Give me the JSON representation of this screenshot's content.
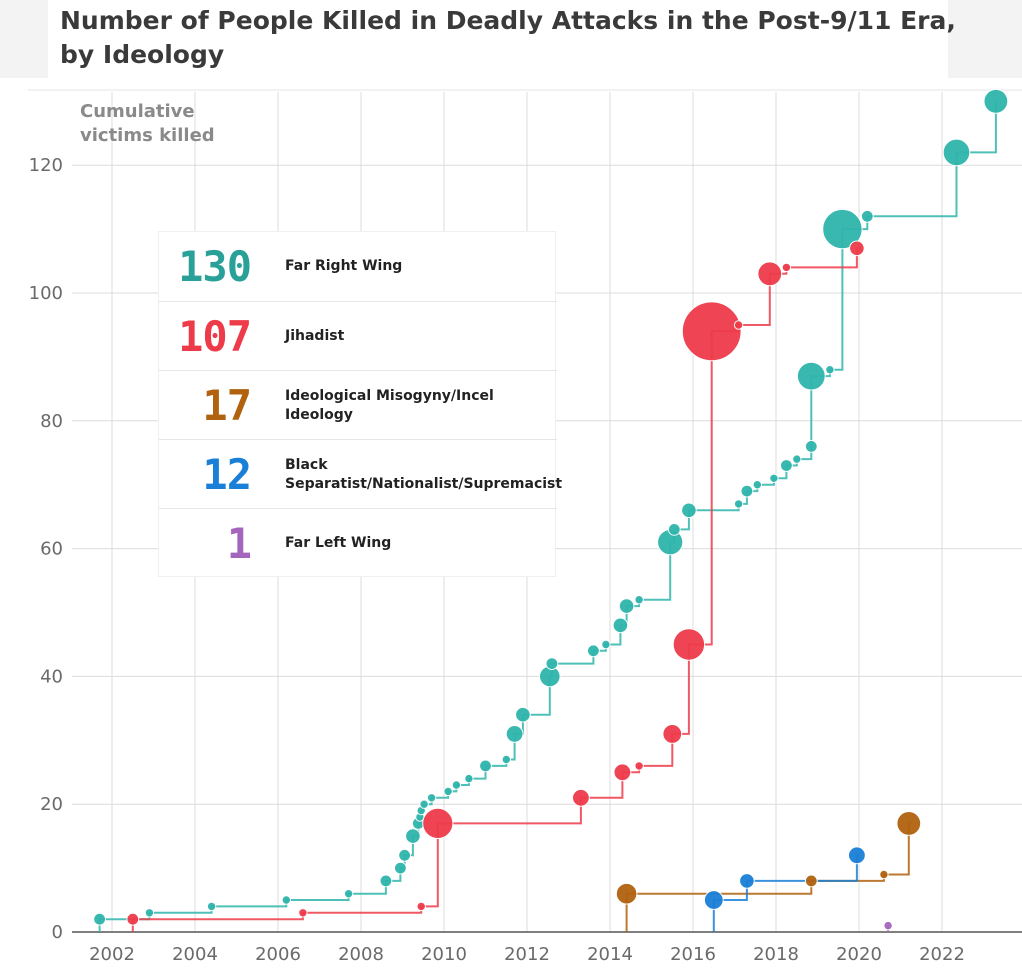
{
  "title": "Number of People Killed in Deadly Attacks in the Post-9/11 Era, by Ideology",
  "chart_data": {
    "type": "line",
    "step": true,
    "ylabel": "Cumulative victims killed",
    "xlim": [
      2000.7,
      2023.3
    ],
    "ylim": [
      0,
      130
    ],
    "x_ticks": [
      "2002",
      "2004",
      "2006",
      "2008",
      "2010",
      "2012",
      "2014",
      "2016",
      "2018",
      "2020",
      "2022"
    ],
    "y_ticks": [
      "0",
      "20",
      "40",
      "60",
      "80",
      "100",
      "120"
    ],
    "grid": true,
    "legend_position": "upper-left",
    "series": [
      {
        "name": "Far Right Wing",
        "total": "130",
        "color": "#2fb5ac",
        "points": [
          {
            "x": 2001.7,
            "y": 2,
            "killed": 2
          },
          {
            "x": 2002.9,
            "y": 3,
            "killed": 1
          },
          {
            "x": 2004.4,
            "y": 4,
            "killed": 1
          },
          {
            "x": 2006.2,
            "y": 5,
            "killed": 1
          },
          {
            "x": 2007.7,
            "y": 6,
            "killed": 1
          },
          {
            "x": 2008.6,
            "y": 8,
            "killed": 2
          },
          {
            "x": 2008.95,
            "y": 10,
            "killed": 2
          },
          {
            "x": 2009.05,
            "y": 12,
            "killed": 2
          },
          {
            "x": 2009.25,
            "y": 15,
            "killed": 3
          },
          {
            "x": 2009.38,
            "y": 17,
            "killed": 2
          },
          {
            "x": 2009.42,
            "y": 18,
            "killed": 1
          },
          {
            "x": 2009.45,
            "y": 19,
            "killed": 1
          },
          {
            "x": 2009.52,
            "y": 20,
            "killed": 1
          },
          {
            "x": 2009.7,
            "y": 21,
            "killed": 1
          },
          {
            "x": 2010.1,
            "y": 22,
            "killed": 1
          },
          {
            "x": 2010.3,
            "y": 23,
            "killed": 1
          },
          {
            "x": 2010.6,
            "y": 24,
            "killed": 1
          },
          {
            "x": 2011.0,
            "y": 26,
            "killed": 2
          },
          {
            "x": 2011.5,
            "y": 27,
            "killed": 1
          },
          {
            "x": 2011.7,
            "y": 31,
            "killed": 4
          },
          {
            "x": 2011.9,
            "y": 34,
            "killed": 3
          },
          {
            "x": 2012.55,
            "y": 40,
            "killed": 6
          },
          {
            "x": 2012.6,
            "y": 42,
            "killed": 2
          },
          {
            "x": 2013.6,
            "y": 44,
            "killed": 2
          },
          {
            "x": 2013.9,
            "y": 45,
            "killed": 1
          },
          {
            "x": 2014.25,
            "y": 48,
            "killed": 3
          },
          {
            "x": 2014.4,
            "y": 51,
            "killed": 3
          },
          {
            "x": 2014.7,
            "y": 52,
            "killed": 1
          },
          {
            "x": 2015.45,
            "y": 61,
            "killed": 9
          },
          {
            "x": 2015.55,
            "y": 63,
            "killed": 2
          },
          {
            "x": 2015.9,
            "y": 66,
            "killed": 3
          },
          {
            "x": 2017.1,
            "y": 67,
            "killed": 1
          },
          {
            "x": 2017.3,
            "y": 69,
            "killed": 2
          },
          {
            "x": 2017.55,
            "y": 70,
            "killed": 1
          },
          {
            "x": 2017.95,
            "y": 71,
            "killed": 1
          },
          {
            "x": 2018.25,
            "y": 73,
            "killed": 2
          },
          {
            "x": 2018.5,
            "y": 74,
            "killed": 1
          },
          {
            "x": 2018.85,
            "y": 76,
            "killed": 2
          },
          {
            "x": 2018.85,
            "y": 87,
            "killed": 11
          },
          {
            "x": 2019.3,
            "y": 88,
            "killed": 1
          },
          {
            "x": 2019.6,
            "y": 110,
            "killed": 22
          },
          {
            "x": 2020.2,
            "y": 112,
            "killed": 2
          },
          {
            "x": 2022.35,
            "y": 122,
            "killed": 10
          },
          {
            "x": 2023.3,
            "y": 130,
            "killed": 8
          }
        ]
      },
      {
        "name": "Jihadist",
        "total": "107",
        "color": "#ee3b4a",
        "points": [
          {
            "x": 2002.5,
            "y": 2,
            "killed": 2
          },
          {
            "x": 2006.6,
            "y": 3,
            "killed": 1
          },
          {
            "x": 2009.45,
            "y": 4,
            "killed": 1
          },
          {
            "x": 2009.85,
            "y": 17,
            "killed": 13
          },
          {
            "x": 2013.3,
            "y": 21,
            "killed": 4
          },
          {
            "x": 2014.3,
            "y": 25,
            "killed": 4
          },
          {
            "x": 2014.7,
            "y": 26,
            "killed": 1
          },
          {
            "x": 2015.5,
            "y": 31,
            "killed": 5
          },
          {
            "x": 2015.9,
            "y": 45,
            "killed": 14
          },
          {
            "x": 2016.45,
            "y": 94,
            "killed": 49
          },
          {
            "x": 2017.1,
            "y": 95,
            "killed": 1
          },
          {
            "x": 2017.85,
            "y": 103,
            "killed": 8
          },
          {
            "x": 2018.25,
            "y": 104,
            "killed": 1
          },
          {
            "x": 2019.95,
            "y": 107,
            "killed": 3
          }
        ]
      },
      {
        "name": "Ideological Misogyny/Incel Ideology",
        "total": "17",
        "color": "#b0620f",
        "points": [
          {
            "x": 2014.4,
            "y": 6,
            "killed": 6
          },
          {
            "x": 2018.85,
            "y": 8,
            "killed": 2
          },
          {
            "x": 2020.6,
            "y": 9,
            "killed": 1
          },
          {
            "x": 2021.2,
            "y": 17,
            "killed": 8
          }
        ]
      },
      {
        "name": "Black Separatist/Nationalist/Supremacist",
        "total": "12",
        "color": "#1a7fd6",
        "points": [
          {
            "x": 2016.5,
            "y": 5,
            "killed": 5
          },
          {
            "x": 2017.3,
            "y": 8,
            "killed": 3
          },
          {
            "x": 2019.95,
            "y": 12,
            "killed": 4
          }
        ]
      },
      {
        "name": "Far Left Wing",
        "total": "1",
        "color": "#a466bd",
        "points": [
          {
            "x": 2020.7,
            "y": 1,
            "killed": 1
          }
        ]
      }
    ]
  }
}
